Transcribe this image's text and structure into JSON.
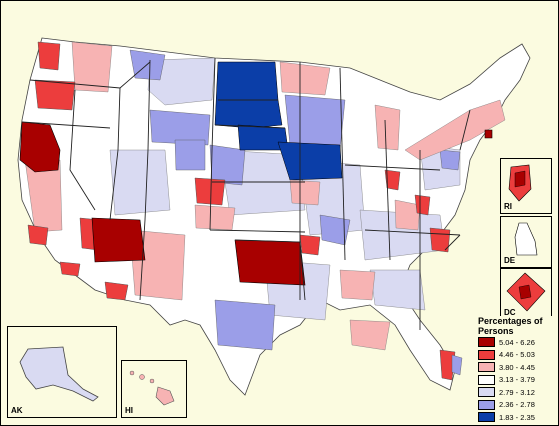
{
  "insets": {
    "ak": "AK",
    "hi": "HI",
    "ri": "RI",
    "de": "DE",
    "dc": "DC"
  },
  "legend": {
    "title": "Percentages of Persons",
    "items": [
      {
        "label": "5.04 - 6.26",
        "color": "#a80000"
      },
      {
        "label": "4.46 - 5.03",
        "color": "#ec3d3d"
      },
      {
        "label": "3.80 - 4.45",
        "color": "#f7b3b3"
      },
      {
        "label": "3.13 - 3.79",
        "color": "#ffffff"
      },
      {
        "label": "2.79 - 3.12",
        "color": "#d9daf2"
      },
      {
        "label": "2.36 - 2.78",
        "color": "#9b9ee8"
      },
      {
        "label": "1.83 - 2.35",
        "color": "#0b3ea8"
      }
    ]
  }
}
